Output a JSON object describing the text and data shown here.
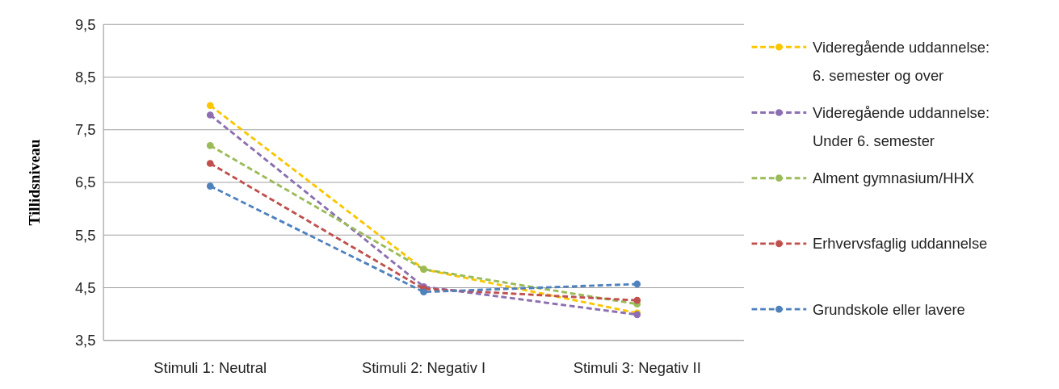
{
  "chart_data": {
    "type": "line",
    "ylabel": "Tillidsniveau",
    "categories": [
      "Stimuli 1: Neutral",
      "Stimuli 2: Negativ I",
      "Stimuli 3: Negativ II"
    ],
    "ylim": [
      3.5,
      9.5
    ],
    "yticks": [
      {
        "value": 3.5,
        "label": "3,5"
      },
      {
        "value": 4.5,
        "label": "4,5"
      },
      {
        "value": 5.5,
        "label": "5,5"
      },
      {
        "value": 6.5,
        "label": "6,5"
      },
      {
        "value": 7.5,
        "label": "7,5"
      },
      {
        "value": 8.5,
        "label": "8,5"
      },
      {
        "value": 9.5,
        "label": "9,5"
      }
    ],
    "grid": "y",
    "legend": "right",
    "marker": "circle",
    "line_style": "dashed",
    "series": [
      {
        "name": "Videregående uddannelse: 6. semester og over",
        "color": "#f9c600",
        "values": [
          7.96,
          4.85,
          4.02
        ]
      },
      {
        "name": "Videregående uddannelse: Under 6. semester",
        "color": "#8c6fb0",
        "values": [
          7.78,
          4.52,
          3.99
        ]
      },
      {
        "name": "Alment gymnasium/HHX",
        "color": "#9bbb59",
        "values": [
          7.2,
          4.85,
          4.19
        ]
      },
      {
        "name": "Erhvervsfaglig uddannelse",
        "color": "#c0504d",
        "values": [
          6.86,
          4.48,
          4.26
        ]
      },
      {
        "name": "Grundskole eller lavere",
        "color": "#4f81bd",
        "values": [
          6.43,
          4.42,
          4.57
        ]
      }
    ]
  }
}
